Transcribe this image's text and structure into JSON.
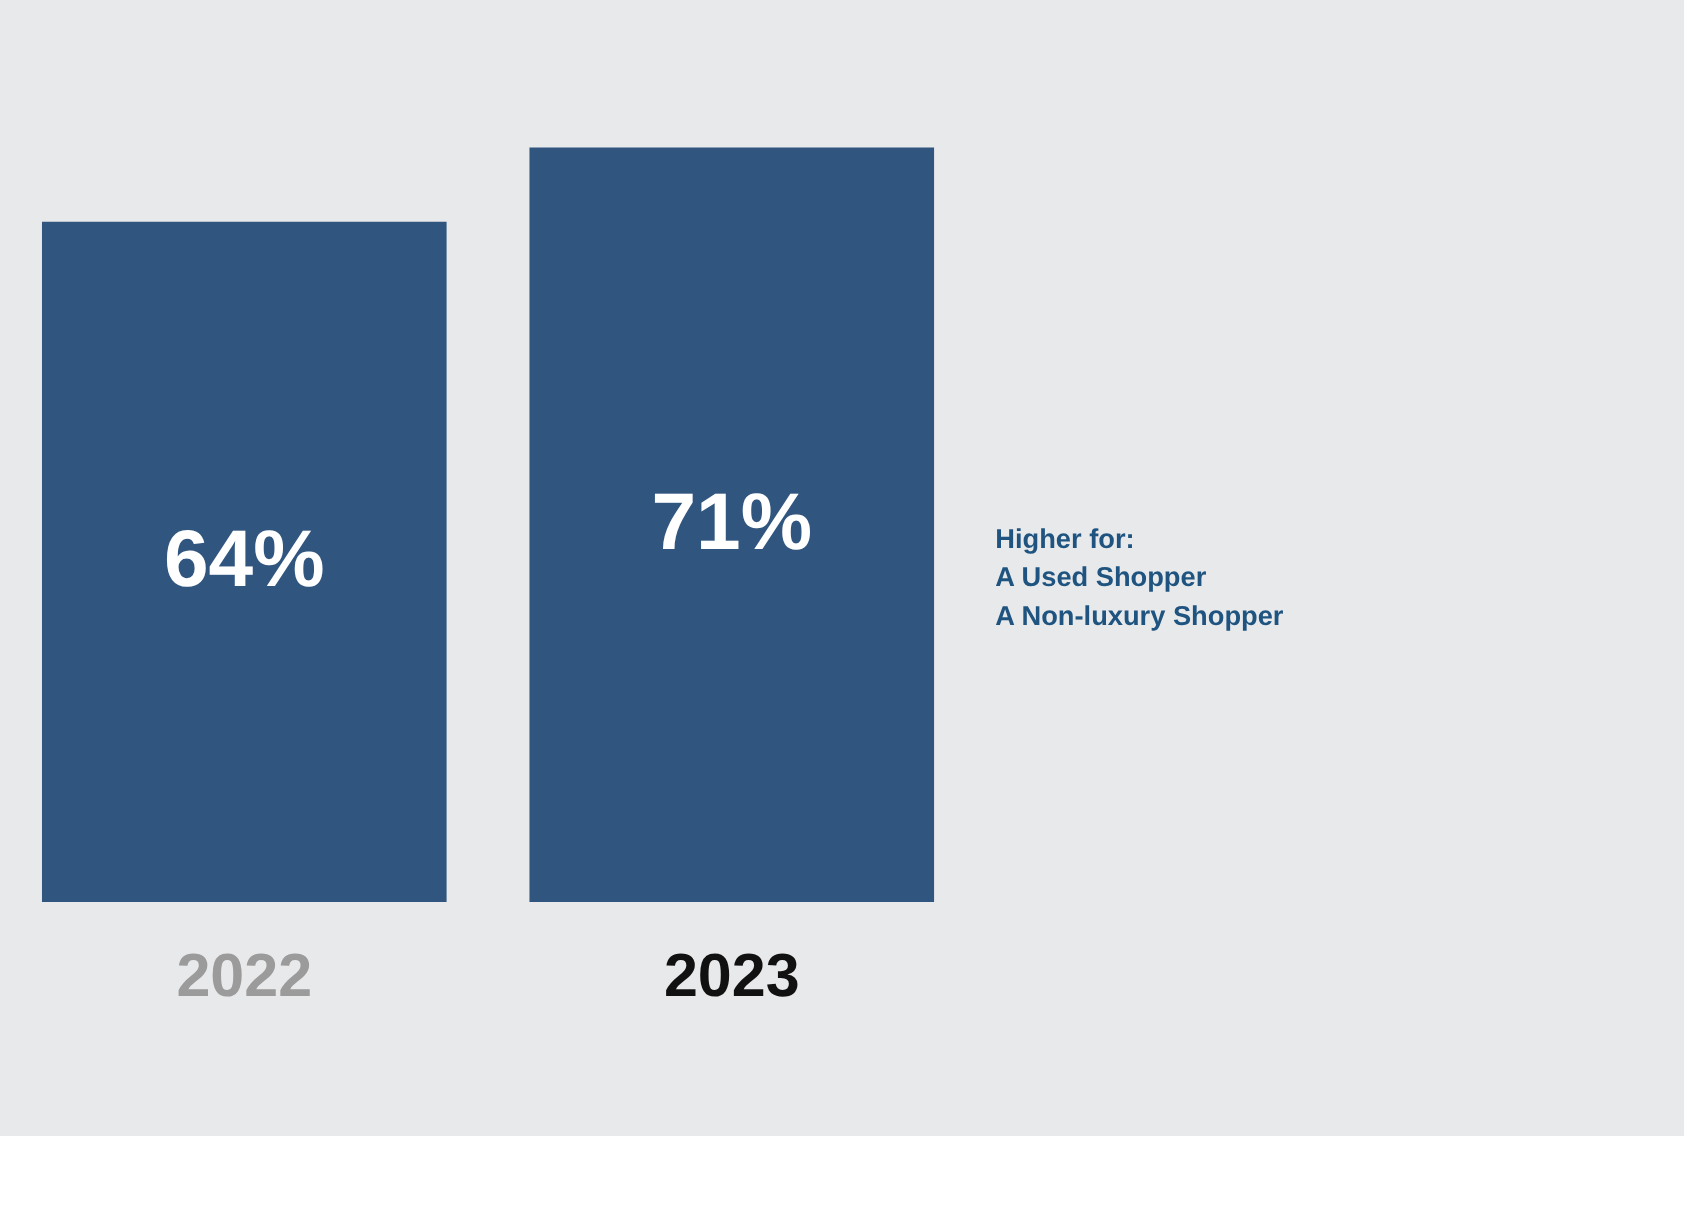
{
  "chart_data": {
    "type": "bar",
    "categories": [
      "2022",
      "2023"
    ],
    "values": [
      64,
      71
    ],
    "value_labels": [
      "64%",
      "71%"
    ],
    "color": "#30557f",
    "annotations": [
      "Higher for:\nA Used Shopper\nA Non-luxury Shopper"
    ]
  }
}
